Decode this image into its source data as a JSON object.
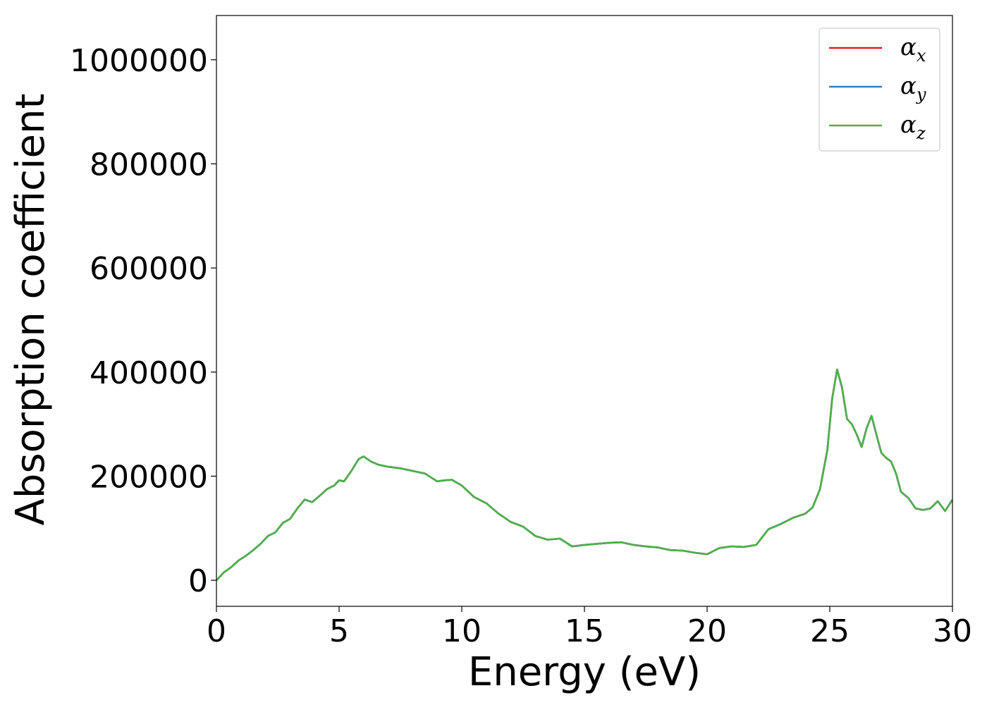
{
  "chart_data": {
    "type": "line",
    "title": "",
    "xlabel": "Energy (eV)",
    "ylabel": "Absorption coefficient",
    "xlim": [
      0,
      30
    ],
    "ylim": [
      -50000,
      1085000
    ],
    "xticks": [
      0,
      5,
      10,
      15,
      20,
      25,
      30
    ],
    "yticks": [
      0,
      200000,
      400000,
      600000,
      800000,
      1000000
    ],
    "grid": false,
    "legend_position": "top-right",
    "series": [
      {
        "name": "α_x",
        "legend_base": "α",
        "legend_sub": "x",
        "color": "#e41a1c",
        "x": [
          0,
          0.3,
          0.6,
          0.9,
          1.2,
          1.5,
          1.8,
          2.1,
          2.4,
          2.7,
          3.0,
          3.3,
          3.6,
          3.9,
          4.2,
          4.5,
          4.8,
          5.0,
          5.2,
          5.5,
          5.8,
          6.0,
          6.3,
          6.6,
          7.0,
          7.5,
          8.0,
          8.5,
          9.0,
          9.3,
          9.6,
          10.0,
          10.5,
          11.0,
          11.5,
          12.0,
          12.5,
          13.0,
          13.5,
          14.0,
          14.5,
          15.0,
          15.5,
          16.0,
          16.5,
          17.0,
          17.5,
          18.0,
          18.5,
          19.0,
          19.5,
          20.0,
          20.5,
          21.0,
          21.5,
          22.0,
          22.5,
          23.0,
          23.5,
          24.0,
          24.3,
          24.6,
          24.9,
          25.1,
          25.3,
          25.5,
          25.7,
          25.9,
          26.1,
          26.3,
          26.5,
          26.7,
          26.9,
          27.1,
          27.3,
          27.5,
          27.7,
          27.9,
          28.2,
          28.5,
          28.8,
          29.1,
          29.4,
          29.7,
          30.0
        ],
        "values": [
          0,
          15000,
          25000,
          38000,
          47000,
          58000,
          70000,
          85000,
          92000,
          110000,
          118000,
          138000,
          155000,
          150000,
          162000,
          175000,
          182000,
          192000,
          190000,
          210000,
          233000,
          238000,
          228000,
          222000,
          218000,
          215000,
          210000,
          205000,
          190000,
          192000,
          193000,
          182000,
          160000,
          148000,
          128000,
          112000,
          103000,
          85000,
          78000,
          80000,
          65000,
          68000,
          70000,
          72000,
          73000,
          68000,
          65000,
          63000,
          58000,
          57000,
          53000,
          50000,
          62000,
          65000,
          64000,
          68000,
          98000,
          108000,
          120000,
          128000,
          140000,
          175000,
          250000,
          350000,
          405000,
          370000,
          310000,
          300000,
          280000,
          256000,
          292000,
          316000,
          280000,
          245000,
          235000,
          228000,
          205000,
          170000,
          158000,
          138000,
          135000,
          138000,
          152000,
          133000,
          155000
        ]
      },
      {
        "name": "α_y",
        "legend_base": "α",
        "legend_sub": "y",
        "color": "#377eb8",
        "x": [
          0,
          0.3,
          0.6,
          0.9,
          1.2,
          1.5,
          1.8,
          2.1,
          2.4,
          2.7,
          3.0,
          3.3,
          3.6,
          3.9,
          4.2,
          4.5,
          4.8,
          5.0,
          5.2,
          5.5,
          5.8,
          6.0,
          6.3,
          6.6,
          7.0,
          7.5,
          8.0,
          8.5,
          9.0,
          9.3,
          9.6,
          10.0,
          10.5,
          11.0,
          11.5,
          12.0,
          12.5,
          13.0,
          13.5,
          14.0,
          14.5,
          15.0,
          15.5,
          16.0,
          16.5,
          17.0,
          17.5,
          18.0,
          18.5,
          19.0,
          19.5,
          20.0,
          20.5,
          21.0,
          21.5,
          22.0,
          22.5,
          23.0,
          23.5,
          24.0,
          24.3,
          24.6,
          24.9,
          25.1,
          25.3,
          25.5,
          25.7,
          25.9,
          26.1,
          26.3,
          26.5,
          26.7,
          26.9,
          27.1,
          27.3,
          27.5,
          27.7,
          27.9,
          28.2,
          28.5,
          28.8,
          29.1,
          29.4,
          29.7,
          30.0
        ],
        "values": [
          0,
          15000,
          25000,
          38000,
          47000,
          58000,
          70000,
          85000,
          92000,
          110000,
          118000,
          138000,
          155000,
          150000,
          162000,
          175000,
          182000,
          192000,
          190000,
          210000,
          233000,
          238000,
          228000,
          222000,
          218000,
          215000,
          210000,
          205000,
          190000,
          192000,
          193000,
          182000,
          160000,
          148000,
          128000,
          112000,
          103000,
          85000,
          78000,
          80000,
          65000,
          68000,
          70000,
          72000,
          73000,
          68000,
          65000,
          63000,
          58000,
          57000,
          53000,
          50000,
          62000,
          65000,
          64000,
          68000,
          98000,
          108000,
          120000,
          128000,
          140000,
          175000,
          250000,
          350000,
          405000,
          370000,
          310000,
          300000,
          280000,
          256000,
          292000,
          316000,
          280000,
          245000,
          235000,
          228000,
          205000,
          170000,
          158000,
          138000,
          135000,
          138000,
          152000,
          133000,
          155000
        ]
      },
      {
        "name": "α_z",
        "legend_base": "α",
        "legend_sub": "z",
        "color": "#4daf4a",
        "x": [
          0,
          0.3,
          0.6,
          0.9,
          1.2,
          1.5,
          1.8,
          2.1,
          2.4,
          2.7,
          3.0,
          3.3,
          3.6,
          3.9,
          4.2,
          4.5,
          4.8,
          5.0,
          5.2,
          5.5,
          5.8,
          6.0,
          6.3,
          6.6,
          7.0,
          7.5,
          8.0,
          8.5,
          9.0,
          9.3,
          9.6,
          10.0,
          10.5,
          11.0,
          11.5,
          12.0,
          12.5,
          13.0,
          13.5,
          14.0,
          14.5,
          15.0,
          15.5,
          16.0,
          16.5,
          17.0,
          17.5,
          18.0,
          18.5,
          19.0,
          19.5,
          20.0,
          20.5,
          21.0,
          21.5,
          22.0,
          22.5,
          23.0,
          23.5,
          24.0,
          24.3,
          24.6,
          24.9,
          25.1,
          25.3,
          25.5,
          25.7,
          25.9,
          26.1,
          26.3,
          26.5,
          26.7,
          26.9,
          27.1,
          27.3,
          27.5,
          27.7,
          27.9,
          28.2,
          28.5,
          28.8,
          29.1,
          29.4,
          29.7,
          30.0
        ],
        "values": [
          0,
          15000,
          25000,
          38000,
          47000,
          58000,
          70000,
          85000,
          92000,
          110000,
          118000,
          138000,
          155000,
          150000,
          162000,
          175000,
          182000,
          192000,
          190000,
          210000,
          233000,
          238000,
          228000,
          222000,
          218000,
          215000,
          210000,
          205000,
          190000,
          192000,
          193000,
          182000,
          160000,
          148000,
          128000,
          112000,
          103000,
          85000,
          78000,
          80000,
          65000,
          68000,
          70000,
          72000,
          73000,
          68000,
          65000,
          63000,
          58000,
          57000,
          53000,
          50000,
          62000,
          65000,
          64000,
          68000,
          98000,
          108000,
          120000,
          128000,
          140000,
          175000,
          250000,
          350000,
          405000,
          370000,
          310000,
          300000,
          280000,
          256000,
          292000,
          316000,
          280000,
          245000,
          235000,
          228000,
          205000,
          170000,
          158000,
          138000,
          135000,
          138000,
          152000,
          133000,
          155000
        ]
      }
    ]
  }
}
